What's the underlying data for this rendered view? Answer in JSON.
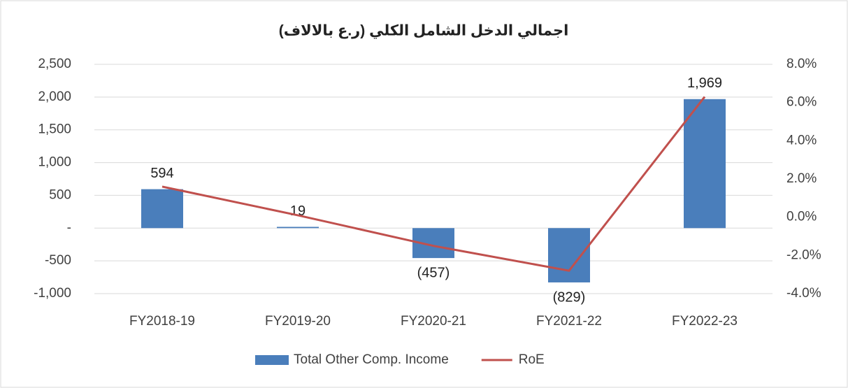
{
  "chart_data": {
    "type": "bar_line",
    "title": "اجمالي الدخل الشامل الكلي (ر.ع بالالاف)",
    "categories": [
      "FY2018-19",
      "FY2019-20",
      "FY2020-21",
      "FY2021-22",
      "FY2022-23"
    ],
    "series": [
      {
        "name": "Total Other Comp. Income",
        "type": "bar",
        "color": "#4a7ebb",
        "axis": "y",
        "values": [
          594,
          19,
          -457,
          -829,
          1969
        ],
        "value_labels": [
          "594",
          "19",
          "(457)",
          "(829)",
          "1,969"
        ]
      },
      {
        "name": "RoE",
        "type": "line",
        "color": "#c0504d",
        "axis": "y2",
        "values": [
          1.6,
          0.1,
          -1.5,
          -2.8,
          6.3
        ]
      }
    ],
    "ylim": [
      -1000,
      2500
    ],
    "yticks": [
      {
        "value": -1000,
        "label": "-1,000"
      },
      -500,
      {
        "value": 0,
        "label": "-"
      },
      500,
      {
        "value": 1000,
        "label": "1,000"
      },
      {
        "value": 1500,
        "label": "1,500"
      },
      {
        "value": 2000,
        "label": "2,000"
      },
      {
        "value": 2500,
        "label": "2,500"
      }
    ],
    "y2lim": [
      -4,
      8
    ],
    "y2ticks": [
      {
        "value": -4,
        "label": "-4.0%"
      },
      {
        "value": -2,
        "label": "-2.0%"
      },
      {
        "value": 0,
        "label": "0.0%"
      },
      {
        "value": 2,
        "label": "2.0%"
      },
      {
        "value": 4,
        "label": "4.0%"
      },
      {
        "value": 6,
        "label": "6.0%"
      },
      {
        "value": 8,
        "label": "8.0%"
      }
    ],
    "grid": true,
    "legend": "bottom"
  }
}
